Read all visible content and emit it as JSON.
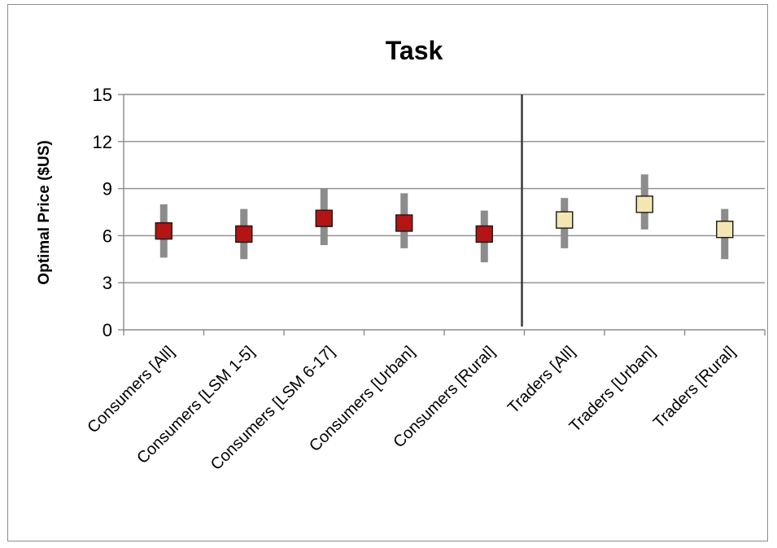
{
  "chart_data": {
    "type": "scatter",
    "title": "Task",
    "ylabel": "Optimal Price  ($US)",
    "xlabel": "",
    "ylim": [
      0,
      15
    ],
    "yticks": [
      0,
      3,
      6,
      9,
      12,
      15
    ],
    "grid": true,
    "divider_after_category": "Consumers [Rural]",
    "categories": [
      "Consumers [All]",
      "Consumers [LSM 1-5]",
      "Consumers [LSM 6-17]",
      "Consumers [Urban]",
      "Consumers [Rural]",
      "Traders [All]",
      "Traders [Urban]",
      "Traders [Rural]"
    ],
    "points": [
      {
        "category": "Consumers [All]",
        "value": 6.3,
        "low": 4.6,
        "high": 8.0,
        "group": "consumers"
      },
      {
        "category": "Consumers [LSM 1-5]",
        "value": 6.1,
        "low": 4.5,
        "high": 7.7,
        "group": "consumers"
      },
      {
        "category": "Consumers [LSM 6-17]",
        "value": 7.1,
        "low": 5.4,
        "high": 9.0,
        "group": "consumers"
      },
      {
        "category": "Consumers [Urban]",
        "value": 6.8,
        "low": 5.2,
        "high": 8.7,
        "group": "consumers"
      },
      {
        "category": "Consumers [Rural]",
        "value": 6.1,
        "low": 4.3,
        "high": 7.6,
        "group": "consumers"
      },
      {
        "category": "Traders [All]",
        "value": 7.0,
        "low": 5.2,
        "high": 8.4,
        "group": "traders"
      },
      {
        "category": "Traders [Urban]",
        "value": 8.0,
        "low": 6.4,
        "high": 9.9,
        "group": "traders"
      },
      {
        "category": "Traders [Rural]",
        "value": 6.4,
        "low": 4.5,
        "high": 7.7,
        "group": "traders"
      }
    ],
    "colors": {
      "consumers_fill": "#b31414",
      "traders_fill": "#f4e6b2",
      "marker_border": "#1a1a1a",
      "range_bar": "#8c8c8c",
      "grid": "#8c8c8c",
      "divider": "#3a3a3a"
    }
  }
}
